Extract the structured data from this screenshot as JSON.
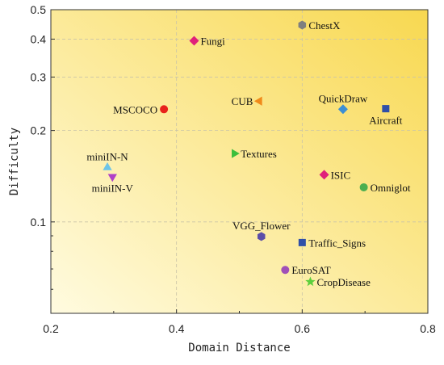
{
  "chart_data": {
    "type": "scatter",
    "title": "",
    "xlabel": "Domain Distance",
    "ylabel": "Difficulty",
    "xlim": [
      0.2,
      0.8
    ],
    "ylim": [
      0.05,
      0.5
    ],
    "xscale": "linear",
    "yscale": "log",
    "grid": true,
    "xticks": [
      "0.2",
      "0.4",
      "0.6",
      "0.8"
    ],
    "yticks": [
      {
        "value": 0.1,
        "label": "0.1"
      },
      {
        "value": 0.2,
        "label": "0.2"
      },
      {
        "value": 0.3,
        "label": "0.3"
      },
      {
        "value": 0.4,
        "label": "0.4"
      },
      {
        "value": 0.5,
        "label": "0.5"
      }
    ],
    "background": {
      "light": "#fffbe0",
      "dark": "#f8d850"
    },
    "points": [
      {
        "label": "ChestX",
        "x": 0.6,
        "y": 0.445,
        "marker": "hexagon",
        "color": "#7f7f7f",
        "label_pos": "right"
      },
      {
        "label": "Fungi",
        "x": 0.428,
        "y": 0.395,
        "marker": "diamond",
        "color": "#e0207a",
        "label_pos": "right"
      },
      {
        "label": "MSCOCO",
        "x": 0.38,
        "y": 0.235,
        "marker": "circle",
        "color": "#e8221b",
        "label_pos": "left"
      },
      {
        "label": "CUB",
        "x": 0.532,
        "y": 0.25,
        "marker": "triangle-left",
        "color": "#f08a1a",
        "label_pos": "left"
      },
      {
        "label": "QuickDraw",
        "x": 0.665,
        "y": 0.235,
        "marker": "diamond",
        "color": "#3c8fd4",
        "label_pos": "above"
      },
      {
        "label": "Aircraft",
        "x": 0.733,
        "y": 0.236,
        "marker": "square",
        "color": "#2f4fa8",
        "label_pos": "below"
      },
      {
        "label": "Textures",
        "x": 0.492,
        "y": 0.168,
        "marker": "triangle-right",
        "color": "#3cbf3c",
        "label_pos": "right"
      },
      {
        "label": "miniIN-N",
        "x": 0.29,
        "y": 0.151,
        "marker": "triangle-up",
        "color": "#6cc4e8",
        "label_pos": "above"
      },
      {
        "label": "miniIN-V",
        "x": 0.298,
        "y": 0.141,
        "marker": "triangle-down",
        "color": "#b040c8",
        "label_pos": "below"
      },
      {
        "label": "ISIC",
        "x": 0.635,
        "y": 0.143,
        "marker": "diamond",
        "color": "#e0207a",
        "label_pos": "right"
      },
      {
        "label": "Omniglot",
        "x": 0.698,
        "y": 0.13,
        "marker": "circle",
        "color": "#4caf50",
        "label_pos": "right"
      },
      {
        "label": "VGG_Flower",
        "x": 0.535,
        "y": 0.0895,
        "marker": "hexagon",
        "color": "#5b4ea8",
        "label_pos": "above"
      },
      {
        "label": "Traffic_Signs",
        "x": 0.6,
        "y": 0.0855,
        "marker": "square",
        "color": "#2f4fa8",
        "label_pos": "right"
      },
      {
        "label": "EuroSAT",
        "x": 0.573,
        "y": 0.0695,
        "marker": "circle",
        "color": "#a050b8",
        "label_pos": "right"
      },
      {
        "label": "CropDisease",
        "x": 0.613,
        "y": 0.0635,
        "marker": "star",
        "color": "#5ccf3c",
        "label_pos": "right"
      }
    ]
  }
}
